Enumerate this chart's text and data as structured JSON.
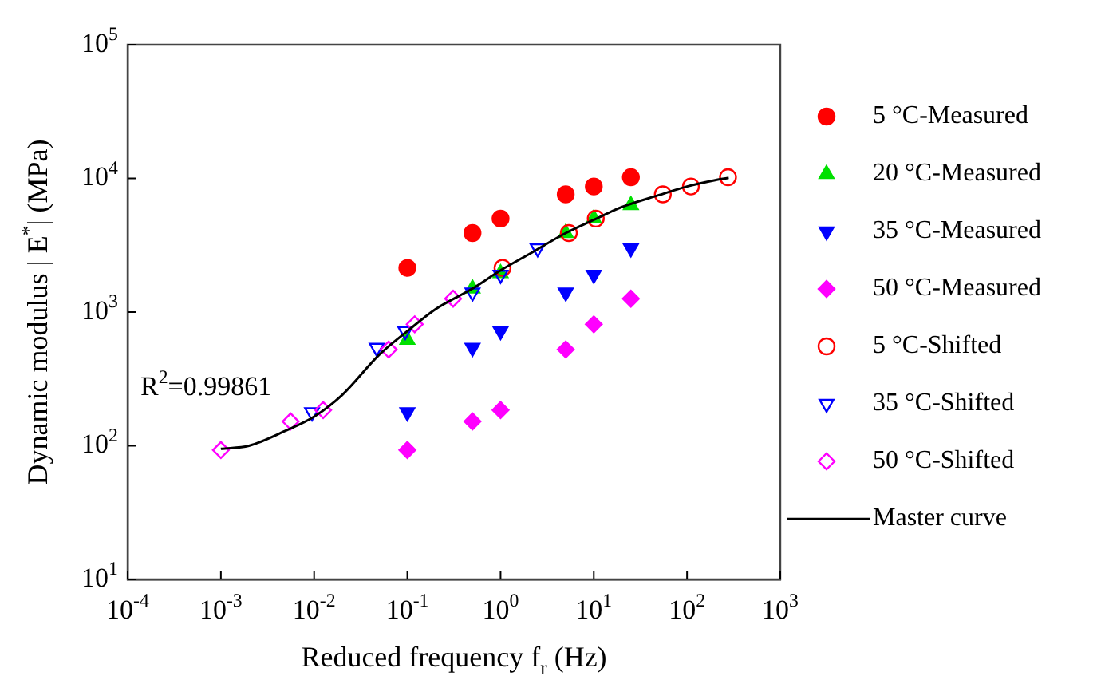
{
  "chart_data": {
    "type": "scatter",
    "xlabel": "Reduced frequency f$_{r}$ (Hz)",
    "ylabel": "Dynamic modulus | E$^{*}$| (MPa)",
    "log": "xy",
    "xlim": [
      0.0001,
      1000
    ],
    "ylim": [
      10,
      100000
    ],
    "xticks": [
      {
        "value": 0.0001,
        "label": "10$^{-4}$"
      },
      {
        "value": 0.001,
        "label": "10$^{-3}$"
      },
      {
        "value": 0.01,
        "label": "10$^{-2}$"
      },
      {
        "value": 0.1,
        "label": "10$^{-1}$"
      },
      {
        "value": 1,
        "label": "10$^{0}$"
      },
      {
        "value": 10,
        "label": "10$^{1}$"
      },
      {
        "value": 100,
        "label": "10$^{2}$"
      },
      {
        "value": 1000,
        "label": "10$^{3}$"
      }
    ],
    "yticks": [
      {
        "value": 10,
        "label": "10$^{1}$"
      },
      {
        "value": 100,
        "label": "10$^{2}$"
      },
      {
        "value": 1000,
        "label": "10$^{3}$"
      },
      {
        "value": 10000,
        "label": "10$^{4}$"
      },
      {
        "value": 100000,
        "label": "10$^{5}$"
      }
    ],
    "legend": "right",
    "grid": false,
    "annotations": [
      "R$^{2}$=0.99861"
    ],
    "series": [
      {
        "name": "5 °C-Measured",
        "color": "#ff0000",
        "marker": "circle",
        "x": [
          0.1,
          0.5,
          1,
          5,
          10,
          25
        ],
        "values": [
          2140,
          3900,
          5000,
          7600,
          8700,
          10200
        ]
      },
      {
        "name": "20 °C-Measured",
        "color": "#00e000",
        "marker": "triangle",
        "x": [
          0.1,
          0.5,
          1,
          5,
          10,
          25
        ],
        "values": [
          620,
          1500,
          1950,
          3900,
          5000,
          6300
        ]
      },
      {
        "name": "35 °C-Measured",
        "color": "#0000ff",
        "marker": "triangle-down",
        "x": [
          0.1,
          0.5,
          1,
          5,
          10,
          25
        ],
        "values": [
          178,
          540,
          720,
          1400,
          1900,
          3000
        ]
      },
      {
        "name": "50 °C-Measured",
        "color": "#ff00ff",
        "marker": "diamond",
        "x": [
          0.1,
          0.5,
          1,
          5,
          10,
          25
        ],
        "values": [
          93,
          152,
          185,
          525,
          810,
          1260
        ]
      },
      {
        "name": "5 °C-Shifted",
        "color": "#ff0000",
        "marker": "circle-open",
        "x": [
          1.05,
          5.4,
          10.5,
          55,
          110,
          275
        ],
        "values": [
          2140,
          3900,
          5000,
          7600,
          8700,
          10200
        ]
      },
      {
        "name": "35 °C-Shifted",
        "color": "#0000ff",
        "marker": "triangle-down-open",
        "x": [
          0.0095,
          0.047,
          0.095,
          0.5,
          1,
          2.5
        ],
        "values": [
          178,
          540,
          720,
          1400,
          1900,
          3000
        ]
      },
      {
        "name": "50 °C-Shifted",
        "color": "#ff00ff",
        "marker": "diamond-open",
        "x": [
          0.001,
          0.0056,
          0.0125,
          0.063,
          0.12,
          0.31
        ],
        "values": [
          93,
          152,
          185,
          525,
          810,
          1260
        ]
      },
      {
        "name": "Master curve",
        "color": "#000000",
        "type": "line",
        "marker": "none",
        "line_style": "solid",
        "x": [
          0.001,
          0.002,
          0.005,
          0.01,
          0.02,
          0.05,
          0.1,
          0.2,
          0.5,
          1,
          2,
          5,
          10,
          20,
          50,
          100,
          200,
          280
        ],
        "values": [
          95,
          100,
          130,
          165,
          240,
          480,
          720,
          1050,
          1500,
          2050,
          2700,
          3900,
          4900,
          6100,
          7500,
          8700,
          9700,
          10100
        ]
      }
    ]
  }
}
